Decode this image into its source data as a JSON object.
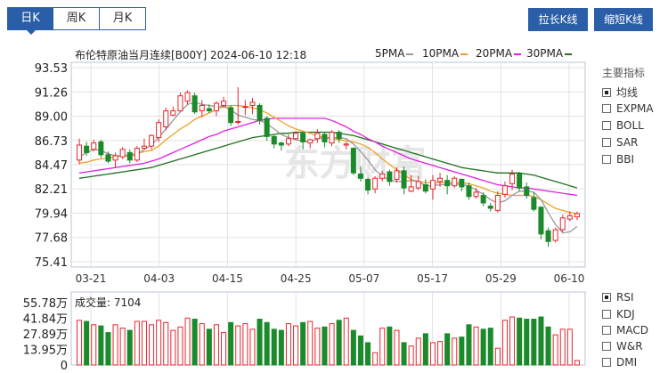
{
  "tabs": [
    "日K",
    "周K",
    "月K"
  ],
  "buttons": {
    "stretch": "拉长K线",
    "shrink": "缩短K线"
  },
  "header": {
    "title": "布伦特原油当月连续[B00Y] 2024-06-10 12:18",
    "ma": [
      {
        "label": "5PMA",
        "color": "#999999"
      },
      {
        "label": "10PMA",
        "color": "#f0a020"
      },
      {
        "label": "20PMA",
        "color": "#e020e0"
      },
      {
        "label": "30PMA",
        "color": "#207020"
      }
    ]
  },
  "sidebar": {
    "main_title": "主要指标",
    "main_items": [
      {
        "label": "均线",
        "checked": true
      },
      {
        "label": "EXPMA",
        "checked": false
      },
      {
        "label": "BOLL",
        "checked": false
      },
      {
        "label": "SAR",
        "checked": false
      },
      {
        "label": "BBI",
        "checked": false
      }
    ],
    "sub_items": [
      {
        "label": "RSI",
        "checked": true
      },
      {
        "label": "KDJ",
        "checked": false
      },
      {
        "label": "MACD",
        "checked": false
      },
      {
        "label": "W&R",
        "checked": false
      },
      {
        "label": "DMI",
        "checked": false
      }
    ]
  },
  "watermark": "东方财富",
  "volume_title": "成交量: 7104",
  "chart_data": {
    "type": "candlestick",
    "title": "布伦特原油当月连续[B00Y] 2024-06-10 12:18",
    "y_ticks": [
      "93.53",
      "91.26",
      "89.00",
      "86.73",
      "84.47",
      "82.21",
      "79.94",
      "77.68",
      "75.41"
    ],
    "ylim": [
      75.41,
      93.53
    ],
    "x_ticks": [
      "03-21",
      "04-03",
      "04-15",
      "04-25",
      "05-07",
      "05-17",
      "05-29",
      "06-10"
    ],
    "candles": [
      [
        84.9,
        86.3,
        84.5,
        86.9
      ],
      [
        86.2,
        85.6,
        85.3,
        86.6
      ],
      [
        85.9,
        86.5,
        85.7,
        86.8
      ],
      [
        86.6,
        85.4,
        85.1,
        86.8
      ],
      [
        85.4,
        84.8,
        84.6,
        85.7
      ],
      [
        84.9,
        85.3,
        84.2,
        85.6
      ],
      [
        85.2,
        85.9,
        85.0,
        86.1
      ],
      [
        85.6,
        84.9,
        84.6,
        85.9
      ],
      [
        84.9,
        86.0,
        84.7,
        86.2
      ],
      [
        86.0,
        86.2,
        85.9,
        86.9
      ],
      [
        86.2,
        87.2,
        85.9,
        87.3
      ],
      [
        87.0,
        88.4,
        86.6,
        88.7
      ],
      [
        88.0,
        89.5,
        87.7,
        89.8
      ],
      [
        89.1,
        89.5,
        89.0,
        89.9
      ],
      [
        89.5,
        90.9,
        89.4,
        91.2
      ],
      [
        90.4,
        91.2,
        90.1,
        91.4
      ],
      [
        90.9,
        89.4,
        89.2,
        91.2
      ],
      [
        89.5,
        90.0,
        88.9,
        90.5
      ],
      [
        89.7,
        89.5,
        89.3,
        90.1
      ],
      [
        89.5,
        90.2,
        89.0,
        90.4
      ],
      [
        90.0,
        90.4,
        89.8,
        90.8
      ],
      [
        89.8,
        88.4,
        88.1,
        90.0
      ],
      [
        88.5,
        88.5,
        88.2,
        91.7
      ],
      [
        89.9,
        89.9,
        89.1,
        90.5
      ],
      [
        90.0,
        90.3,
        89.2,
        90.7
      ],
      [
        90.0,
        88.6,
        88.2,
        90.2
      ],
      [
        88.8,
        87.1,
        86.7,
        89.0
      ],
      [
        87.1,
        86.4,
        86.0,
        87.2
      ],
      [
        86.5,
        86.3,
        85.8,
        86.6
      ],
      [
        86.4,
        86.9,
        86.2,
        87.3
      ],
      [
        86.9,
        87.4,
        86.8,
        87.6
      ],
      [
        87.4,
        86.6,
        85.9,
        87.5
      ],
      [
        86.5,
        86.8,
        86.0,
        86.9
      ],
      [
        86.9,
        87.4,
        86.5,
        87.8
      ],
      [
        87.3,
        86.6,
        86.1,
        87.5
      ],
      [
        86.5,
        87.5,
        86.2,
        87.7
      ],
      [
        87.5,
        86.9,
        86.5,
        87.7
      ],
      [
        86.3,
        86.4,
        85.9,
        86.6
      ],
      [
        86.0,
        83.7,
        83.5,
        86.1
      ],
      [
        83.6,
        83.2,
        82.9,
        84.3
      ],
      [
        83.1,
        82.1,
        81.7,
        83.3
      ],
      [
        82.2,
        83.2,
        81.8,
        83.4
      ],
      [
        83.2,
        83.6,
        82.9,
        83.9
      ],
      [
        83.8,
        82.9,
        82.5,
        84.0
      ],
      [
        83.1,
        83.9,
        82.8,
        84.2
      ],
      [
        83.9,
        82.3,
        81.7,
        84.3
      ],
      [
        82.0,
        82.4,
        81.9,
        83.5
      ],
      [
        82.3,
        82.9,
        82.1,
        83.4
      ],
      [
        82.6,
        82.0,
        81.8,
        83.1
      ],
      [
        82.2,
        83.0,
        81.2,
        83.5
      ],
      [
        82.9,
        83.2,
        82.4,
        83.7
      ],
      [
        83.0,
        82.5,
        81.7,
        83.5
      ],
      [
        82.5,
        83.2,
        82.3,
        83.4
      ],
      [
        83.1,
        82.4,
        82.0,
        83.2
      ],
      [
        82.5,
        81.5,
        81.2,
        82.8
      ],
      [
        81.5,
        81.9,
        81.3,
        82.3
      ],
      [
        81.6,
        80.9,
        80.6,
        81.9
      ],
      [
        80.6,
        80.4,
        80.1,
        80.9
      ],
      [
        80.2,
        81.6,
        80.0,
        82.0
      ],
      [
        81.7,
        82.5,
        81.4,
        82.9
      ],
      [
        82.7,
        83.6,
        82.1,
        84.0
      ],
      [
        83.6,
        82.3,
        82.0,
        83.8
      ],
      [
        82.4,
        81.6,
        81.3,
        82.8
      ],
      [
        81.4,
        80.3,
        80.1,
        81.9
      ],
      [
        80.5,
        78.0,
        77.5,
        80.6
      ],
      [
        78.3,
        77.3,
        76.8,
        78.6
      ],
      [
        77.4,
        78.4,
        77.2,
        78.6
      ],
      [
        78.4,
        79.5,
        78.2,
        79.8
      ],
      [
        79.4,
        79.7,
        79.2,
        80.1
      ],
      [
        79.6,
        79.9,
        79.3,
        80.1
      ]
    ],
    "ma5": [
      85.2,
      85.6,
      85.9,
      85.8,
      85.5,
      85.3,
      85.3,
      85.3,
      85.4,
      85.9,
      86.3,
      87.0,
      87.8,
      88.6,
      89.4,
      90.1,
      90.3,
      90.1,
      90.0,
      89.9,
      89.9,
      89.6,
      89.1,
      88.9,
      88.7,
      88.6,
      88.3,
      87.8,
      87.3,
      87.0,
      86.8,
      86.7,
      86.6,
      86.9,
      87.0,
      87.0,
      87.0,
      86.9,
      86.4,
      85.7,
      84.9,
      84.0,
      83.4,
      83.0,
      82.9,
      82.9,
      83.0,
      82.9,
      82.5,
      82.5,
      82.6,
      82.6,
      82.7,
      82.6,
      82.5,
      82.1,
      81.7,
      81.2,
      80.9,
      81.1,
      81.6,
      82.0,
      82.0,
      81.9,
      81.2,
      80.0,
      78.9,
      78.1,
      78.2,
      78.7
    ],
    "ma10": [
      84.6,
      84.7,
      84.9,
      85.0,
      85.1,
      85.2,
      85.3,
      85.4,
      85.5,
      85.7,
      85.8,
      86.2,
      86.8,
      87.3,
      87.8,
      88.2,
      88.7,
      89.0,
      89.3,
      89.6,
      89.9,
      90.0,
      90.0,
      89.9,
      89.8,
      89.6,
      89.3,
      88.9,
      88.5,
      88.1,
      87.8,
      87.6,
      87.4,
      87.2,
      87.0,
      86.9,
      86.8,
      86.7,
      86.6,
      86.4,
      86.1,
      85.6,
      85.0,
      84.5,
      84.0,
      83.5,
      83.1,
      82.9,
      82.8,
      82.8,
      82.8,
      82.8,
      82.8,
      82.8,
      82.7,
      82.5,
      82.3,
      82.0,
      81.8,
      81.7,
      81.6,
      81.6,
      81.6,
      81.5,
      81.2,
      80.8,
      80.4,
      80.2,
      80.0,
      79.9
    ],
    "ma20": [
      83.7,
      83.8,
      83.9,
      84.0,
      84.1,
      84.2,
      84.3,
      84.4,
      84.5,
      84.6,
      84.8,
      85.0,
      85.3,
      85.6,
      85.9,
      86.2,
      86.5,
      86.8,
      87.1,
      87.3,
      87.6,
      87.8,
      88.0,
      88.2,
      88.4,
      88.6,
      88.7,
      88.8,
      88.8,
      88.8,
      88.8,
      88.8,
      88.8,
      88.8,
      88.8,
      88.6,
      88.3,
      88.0,
      87.6,
      87.3,
      86.9,
      86.6,
      86.2,
      85.9,
      85.6,
      85.3,
      85.0,
      84.8,
      84.6,
      84.4,
      84.2,
      84.0,
      83.8,
      83.6,
      83.4,
      83.2,
      83.0,
      82.8,
      82.6,
      82.5,
      82.4,
      82.3,
      82.3,
      82.2,
      82.1,
      82.0,
      81.9,
      81.8,
      81.7,
      81.6
    ],
    "ma30": [
      83.2,
      83.3,
      83.4,
      83.5,
      83.6,
      83.7,
      83.8,
      83.9,
      84.0,
      84.1,
      84.2,
      84.4,
      84.6,
      84.8,
      85.0,
      85.2,
      85.4,
      85.6,
      85.8,
      86.0,
      86.2,
      86.4,
      86.6,
      86.8,
      87.0,
      87.1,
      87.2,
      87.3,
      87.4,
      87.4,
      87.5,
      87.5,
      87.5,
      87.5,
      87.5,
      87.5,
      87.4,
      87.3,
      87.2,
      87.0,
      86.8,
      86.6,
      86.4,
      86.2,
      86.0,
      85.8,
      85.6,
      85.4,
      85.2,
      85.0,
      84.8,
      84.6,
      84.4,
      84.2,
      84.1,
      84.0,
      83.9,
      83.8,
      83.7,
      83.7,
      83.7,
      83.7,
      83.6,
      83.5,
      83.3,
      83.1,
      82.9,
      82.7,
      82.5,
      82.3
    ],
    "volume": {
      "y_ticks": [
        "55.78万",
        "41.84万",
        "27.89万",
        "13.95万",
        "0"
      ],
      "ylim": [
        0,
        55.78
      ],
      "values": [
        40,
        39,
        36,
        35,
        29,
        36,
        33,
        31,
        39,
        39,
        36,
        40,
        38,
        31,
        34,
        42,
        41,
        37,
        32,
        36,
        29,
        38,
        35,
        37,
        32,
        41,
        38,
        32,
        31,
        37,
        35,
        38,
        39,
        33,
        34,
        37,
        40,
        42,
        31,
        26,
        20,
        11,
        33,
        34,
        31,
        20,
        17,
        24,
        28,
        20,
        21,
        28,
        24,
        25,
        36,
        34,
        32,
        33,
        15,
        40,
        43,
        42,
        41,
        41,
        43,
        34,
        27,
        32,
        32,
        4
      ]
    }
  }
}
